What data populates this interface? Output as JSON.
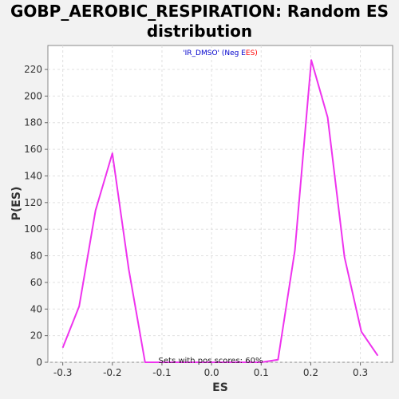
{
  "chart_data": {
    "type": "line",
    "title_line1": "GOBP_AEROBIC_RESPIRATION: Random ES",
    "title_line2": "distribution",
    "xlabel": "ES",
    "ylabel": "P(ES)",
    "xlim": [
      -0.33,
      0.365
    ],
    "ylim": [
      0,
      238
    ],
    "xticks": [
      -0.3,
      -0.2,
      -0.1,
      0.0,
      0.1,
      0.2,
      0.3
    ],
    "xtick_labels": [
      "-0.3",
      "-0.2",
      "-0.1",
      "0.0",
      "0.1",
      "0.2",
      "0.3"
    ],
    "yticks": [
      0,
      20,
      40,
      60,
      80,
      100,
      120,
      140,
      160,
      180,
      200,
      220
    ],
    "ytick_labels": [
      "0",
      "20",
      "40",
      "60",
      "80",
      "100",
      "120",
      "140",
      "160",
      "180",
      "200",
      "220"
    ],
    "grid": true,
    "legend": {
      "part1": "'IR_DMSO' (Neg E",
      "part2": "ES)",
      "color1": "#0000cc",
      "color2": "#ff0000",
      "placement": "top-center"
    },
    "annotation": "Sets with pos scores: 60%",
    "series": [
      {
        "color": "#ee33ee",
        "x": [
          -0.3,
          -0.267,
          -0.234,
          -0.2,
          -0.167,
          -0.134,
          -0.1,
          -0.067,
          -0.034,
          0.0,
          0.033,
          0.066,
          0.1,
          0.134,
          0.168,
          0.201,
          0.234,
          0.268,
          0.302,
          0.335
        ],
        "y": [
          11,
          42,
          114,
          157,
          70,
          0,
          0,
          0,
          0,
          0,
          0,
          0,
          0,
          2,
          84,
          227,
          184,
          79,
          23,
          5
        ]
      }
    ]
  }
}
